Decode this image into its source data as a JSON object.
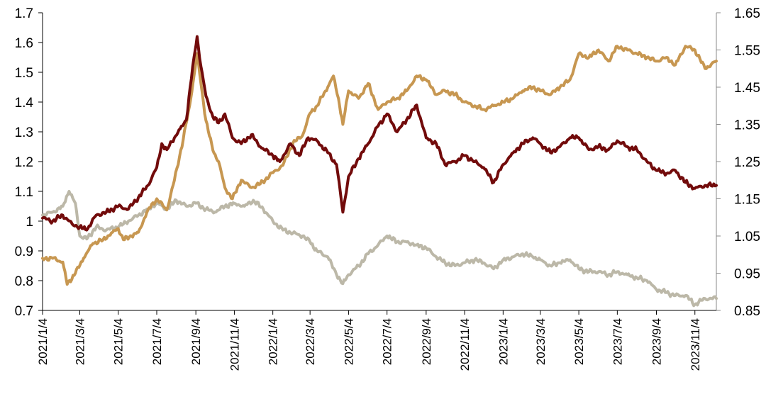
{
  "chart_data": {
    "type": "line",
    "title": "",
    "xlabel": "",
    "ylabel": "",
    "x_tick_labels": [
      "2021/1/4",
      "2021/3/4",
      "2021/5/4",
      "2021/7/4",
      "2021/9/4",
      "2021/11/4",
      "2022/1/4",
      "2022/3/4",
      "2022/5/4",
      "2022/7/4",
      "2022/9/4",
      "2022/11/4",
      "2023/1/4",
      "2023/3/4",
      "2023/5/4",
      "2023/7/4",
      "2023/9/4",
      "2023/11/4"
    ],
    "xlim": [
      "2021-01-04",
      "2023-12-08"
    ],
    "y_left": {
      "ylim": [
        0.7,
        1.7
      ],
      "ticks": [
        "0.7",
        "0.8",
        "0.9",
        "1",
        "1.1",
        "1.2",
        "1.3",
        "1.4",
        "1.5",
        "1.6",
        "1.7"
      ]
    },
    "y_right": {
      "ylim": [
        0.85,
        1.65
      ],
      "ticks": [
        "0.85",
        "0.95",
        "1.05",
        "1.15",
        "1.25",
        "1.35",
        "1.45",
        "1.55",
        "1.65"
      ]
    },
    "grid": false,
    "legend": "none",
    "series": [
      {
        "color": "#720b0b",
        "axis": "left",
        "points": [
          [
            "2021-01-04",
            1.01
          ],
          [
            "2021-01-20",
            1.0
          ],
          [
            "2021-02-05",
            1.02
          ],
          [
            "2021-02-20",
            0.99
          ],
          [
            "2021-03-04",
            0.98
          ],
          [
            "2021-03-15",
            0.97
          ],
          [
            "2021-03-30",
            1.02
          ],
          [
            "2021-04-15",
            1.03
          ],
          [
            "2021-05-04",
            1.05
          ],
          [
            "2021-05-20",
            1.04
          ],
          [
            "2021-06-05",
            1.08
          ],
          [
            "2021-06-20",
            1.12
          ],
          [
            "2021-07-04",
            1.18
          ],
          [
            "2021-07-12",
            1.26
          ],
          [
            "2021-07-20",
            1.24
          ],
          [
            "2021-08-01",
            1.28
          ],
          [
            "2021-08-10",
            1.31
          ],
          [
            "2021-08-20",
            1.34
          ],
          [
            "2021-08-26",
            1.45
          ],
          [
            "2021-09-01",
            1.55
          ],
          [
            "2021-09-06",
            1.62
          ],
          [
            "2021-09-12",
            1.52
          ],
          [
            "2021-09-20",
            1.42
          ],
          [
            "2021-10-01",
            1.35
          ],
          [
            "2021-10-10",
            1.33
          ],
          [
            "2021-10-20",
            1.36
          ],
          [
            "2021-11-01",
            1.28
          ],
          [
            "2021-11-15",
            1.26
          ],
          [
            "2021-12-01",
            1.29
          ],
          [
            "2021-12-15",
            1.25
          ],
          [
            "2022-01-04",
            1.22
          ],
          [
            "2022-01-15",
            1.2
          ],
          [
            "2022-02-01",
            1.26
          ],
          [
            "2022-02-15",
            1.22
          ],
          [
            "2022-03-01",
            1.28
          ],
          [
            "2022-03-15",
            1.27
          ],
          [
            "2022-04-01",
            1.23
          ],
          [
            "2022-04-15",
            1.19
          ],
          [
            "2022-04-25",
            1.03
          ],
          [
            "2022-05-04",
            1.15
          ],
          [
            "2022-05-20",
            1.21
          ],
          [
            "2022-06-04",
            1.26
          ],
          [
            "2022-06-20",
            1.32
          ],
          [
            "2022-07-04",
            1.36
          ],
          [
            "2022-07-20",
            1.3
          ],
          [
            "2022-08-04",
            1.34
          ],
          [
            "2022-08-20",
            1.39
          ],
          [
            "2022-09-04",
            1.28
          ],
          [
            "2022-09-20",
            1.26
          ],
          [
            "2022-10-04",
            1.19
          ],
          [
            "2022-10-20",
            1.2
          ],
          [
            "2022-11-04",
            1.22
          ],
          [
            "2022-11-20",
            1.2
          ],
          [
            "2022-12-04",
            1.18
          ],
          [
            "2022-12-20",
            1.13
          ],
          [
            "2023-01-04",
            1.19
          ],
          [
            "2023-01-20",
            1.23
          ],
          [
            "2023-02-04",
            1.26
          ],
          [
            "2023-02-20",
            1.28
          ],
          [
            "2023-03-04",
            1.26
          ],
          [
            "2023-03-20",
            1.23
          ],
          [
            "2023-04-04",
            1.25
          ],
          [
            "2023-04-20",
            1.28
          ],
          [
            "2023-05-04",
            1.28
          ],
          [
            "2023-05-20",
            1.24
          ],
          [
            "2023-06-04",
            1.25
          ],
          [
            "2023-06-20",
            1.24
          ],
          [
            "2023-07-04",
            1.27
          ],
          [
            "2023-07-20",
            1.25
          ],
          [
            "2023-08-04",
            1.24
          ],
          [
            "2023-08-20",
            1.2
          ],
          [
            "2023-09-04",
            1.17
          ],
          [
            "2023-09-20",
            1.16
          ],
          [
            "2023-10-04",
            1.17
          ],
          [
            "2023-10-20",
            1.13
          ],
          [
            "2023-11-04",
            1.11
          ],
          [
            "2023-11-20",
            1.12
          ],
          [
            "2023-12-08",
            1.12
          ]
        ]
      },
      {
        "color": "#c79751",
        "axis": "right",
        "points": [
          [
            "2021-01-04",
            0.99
          ],
          [
            "2021-01-20",
            0.99
          ],
          [
            "2021-02-05",
            0.98
          ],
          [
            "2021-02-12",
            0.92
          ],
          [
            "2021-02-25",
            0.95
          ],
          [
            "2021-03-10",
            0.99
          ],
          [
            "2021-03-25",
            1.03
          ],
          [
            "2021-04-10",
            1.04
          ],
          [
            "2021-04-25",
            1.06
          ],
          [
            "2021-05-04",
            1.07
          ],
          [
            "2021-05-12",
            1.04
          ],
          [
            "2021-05-25",
            1.05
          ],
          [
            "2021-06-05",
            1.06
          ],
          [
            "2021-06-20",
            1.12
          ],
          [
            "2021-07-04",
            1.15
          ],
          [
            "2021-07-20",
            1.12
          ],
          [
            "2021-08-01",
            1.2
          ],
          [
            "2021-08-15",
            1.31
          ],
          [
            "2021-08-25",
            1.4
          ],
          [
            "2021-09-01",
            1.48
          ],
          [
            "2021-09-06",
            1.54
          ],
          [
            "2021-09-12",
            1.46
          ],
          [
            "2021-09-20",
            1.36
          ],
          [
            "2021-10-01",
            1.28
          ],
          [
            "2021-10-10",
            1.25
          ],
          [
            "2021-10-20",
            1.18
          ],
          [
            "2021-11-01",
            1.15
          ],
          [
            "2021-11-15",
            1.2
          ],
          [
            "2021-12-01",
            1.18
          ],
          [
            "2021-12-15",
            1.19
          ],
          [
            "2022-01-04",
            1.22
          ],
          [
            "2022-01-20",
            1.24
          ],
          [
            "2022-02-05",
            1.3
          ],
          [
            "2022-02-20",
            1.32
          ],
          [
            "2022-03-04",
            1.38
          ],
          [
            "2022-03-15",
            1.4
          ],
          [
            "2022-04-01",
            1.45
          ],
          [
            "2022-04-10",
            1.48
          ],
          [
            "2022-04-18",
            1.42
          ],
          [
            "2022-04-25",
            1.35
          ],
          [
            "2022-05-04",
            1.44
          ],
          [
            "2022-05-20",
            1.42
          ],
          [
            "2022-06-04",
            1.46
          ],
          [
            "2022-06-20",
            1.39
          ],
          [
            "2022-07-04",
            1.41
          ],
          [
            "2022-07-20",
            1.42
          ],
          [
            "2022-08-04",
            1.44
          ],
          [
            "2022-08-20",
            1.48
          ],
          [
            "2022-09-04",
            1.47
          ],
          [
            "2022-09-20",
            1.43
          ],
          [
            "2022-10-04",
            1.44
          ],
          [
            "2022-10-20",
            1.43
          ],
          [
            "2022-11-04",
            1.41
          ],
          [
            "2022-11-20",
            1.4
          ],
          [
            "2022-12-04",
            1.39
          ],
          [
            "2022-12-20",
            1.4
          ],
          [
            "2023-01-04",
            1.41
          ],
          [
            "2023-01-20",
            1.42
          ],
          [
            "2023-02-04",
            1.44
          ],
          [
            "2023-02-20",
            1.45
          ],
          [
            "2023-03-04",
            1.44
          ],
          [
            "2023-03-20",
            1.43
          ],
          [
            "2023-04-04",
            1.45
          ],
          [
            "2023-04-20",
            1.47
          ],
          [
            "2023-05-04",
            1.54
          ],
          [
            "2023-05-20",
            1.53
          ],
          [
            "2023-06-04",
            1.55
          ],
          [
            "2023-06-20",
            1.52
          ],
          [
            "2023-07-04",
            1.56
          ],
          [
            "2023-07-20",
            1.55
          ],
          [
            "2023-08-04",
            1.54
          ],
          [
            "2023-08-20",
            1.53
          ],
          [
            "2023-09-04",
            1.52
          ],
          [
            "2023-09-20",
            1.53
          ],
          [
            "2023-10-04",
            1.51
          ],
          [
            "2023-10-20",
            1.56
          ],
          [
            "2023-11-04",
            1.55
          ],
          [
            "2023-11-20",
            1.5
          ],
          [
            "2023-12-08",
            1.52
          ]
        ]
      },
      {
        "color": "#bcb8a8",
        "axis": "left",
        "points": [
          [
            "2021-01-04",
            1.02
          ],
          [
            "2021-01-20",
            1.03
          ],
          [
            "2021-02-05",
            1.05
          ],
          [
            "2021-02-15",
            1.1
          ],
          [
            "2021-02-25",
            1.06
          ],
          [
            "2021-03-04",
            0.95
          ],
          [
            "2021-03-15",
            0.94
          ],
          [
            "2021-03-30",
            0.98
          ],
          [
            "2021-04-15",
            0.97
          ],
          [
            "2021-05-04",
            0.98
          ],
          [
            "2021-05-20",
            1.0
          ],
          [
            "2021-06-05",
            1.02
          ],
          [
            "2021-06-20",
            1.04
          ],
          [
            "2021-07-04",
            1.06
          ],
          [
            "2021-07-20",
            1.04
          ],
          [
            "2021-08-04",
            1.07
          ],
          [
            "2021-08-20",
            1.05
          ],
          [
            "2021-09-04",
            1.06
          ],
          [
            "2021-09-20",
            1.04
          ],
          [
            "2021-10-04",
            1.03
          ],
          [
            "2021-10-20",
            1.05
          ],
          [
            "2021-11-04",
            1.06
          ],
          [
            "2021-11-20",
            1.05
          ],
          [
            "2021-12-04",
            1.07
          ],
          [
            "2021-12-20",
            1.04
          ],
          [
            "2022-01-04",
            1.0
          ],
          [
            "2022-01-20",
            0.97
          ],
          [
            "2022-02-05",
            0.96
          ],
          [
            "2022-02-20",
            0.95
          ],
          [
            "2022-03-04",
            0.93
          ],
          [
            "2022-03-15",
            0.9
          ],
          [
            "2022-04-01",
            0.88
          ],
          [
            "2022-04-15",
            0.82
          ],
          [
            "2022-04-25",
            0.79
          ],
          [
            "2022-05-04",
            0.82
          ],
          [
            "2022-05-20",
            0.85
          ],
          [
            "2022-06-04",
            0.89
          ],
          [
            "2022-06-20",
            0.92
          ],
          [
            "2022-07-04",
            0.95
          ],
          [
            "2022-07-20",
            0.93
          ],
          [
            "2022-08-04",
            0.93
          ],
          [
            "2022-08-20",
            0.92
          ],
          [
            "2022-09-04",
            0.91
          ],
          [
            "2022-09-20",
            0.88
          ],
          [
            "2022-10-04",
            0.86
          ],
          [
            "2022-10-20",
            0.85
          ],
          [
            "2022-11-04",
            0.86
          ],
          [
            "2022-11-20",
            0.87
          ],
          [
            "2022-12-04",
            0.86
          ],
          [
            "2022-12-20",
            0.84
          ],
          [
            "2023-01-04",
            0.87
          ],
          [
            "2023-01-20",
            0.88
          ],
          [
            "2023-02-04",
            0.89
          ],
          [
            "2023-02-20",
            0.88
          ],
          [
            "2023-03-04",
            0.87
          ],
          [
            "2023-03-20",
            0.85
          ],
          [
            "2023-04-04",
            0.86
          ],
          [
            "2023-04-20",
            0.87
          ],
          [
            "2023-05-04",
            0.84
          ],
          [
            "2023-05-20",
            0.83
          ],
          [
            "2023-06-04",
            0.83
          ],
          [
            "2023-06-20",
            0.82
          ],
          [
            "2023-07-04",
            0.83
          ],
          [
            "2023-07-20",
            0.82
          ],
          [
            "2023-08-04",
            0.81
          ],
          [
            "2023-08-20",
            0.8
          ],
          [
            "2023-09-04",
            0.77
          ],
          [
            "2023-09-20",
            0.76
          ],
          [
            "2023-10-04",
            0.75
          ],
          [
            "2023-10-20",
            0.75
          ],
          [
            "2023-11-04",
            0.72
          ],
          [
            "2023-11-20",
            0.74
          ],
          [
            "2023-12-08",
            0.74
          ]
        ]
      }
    ]
  }
}
